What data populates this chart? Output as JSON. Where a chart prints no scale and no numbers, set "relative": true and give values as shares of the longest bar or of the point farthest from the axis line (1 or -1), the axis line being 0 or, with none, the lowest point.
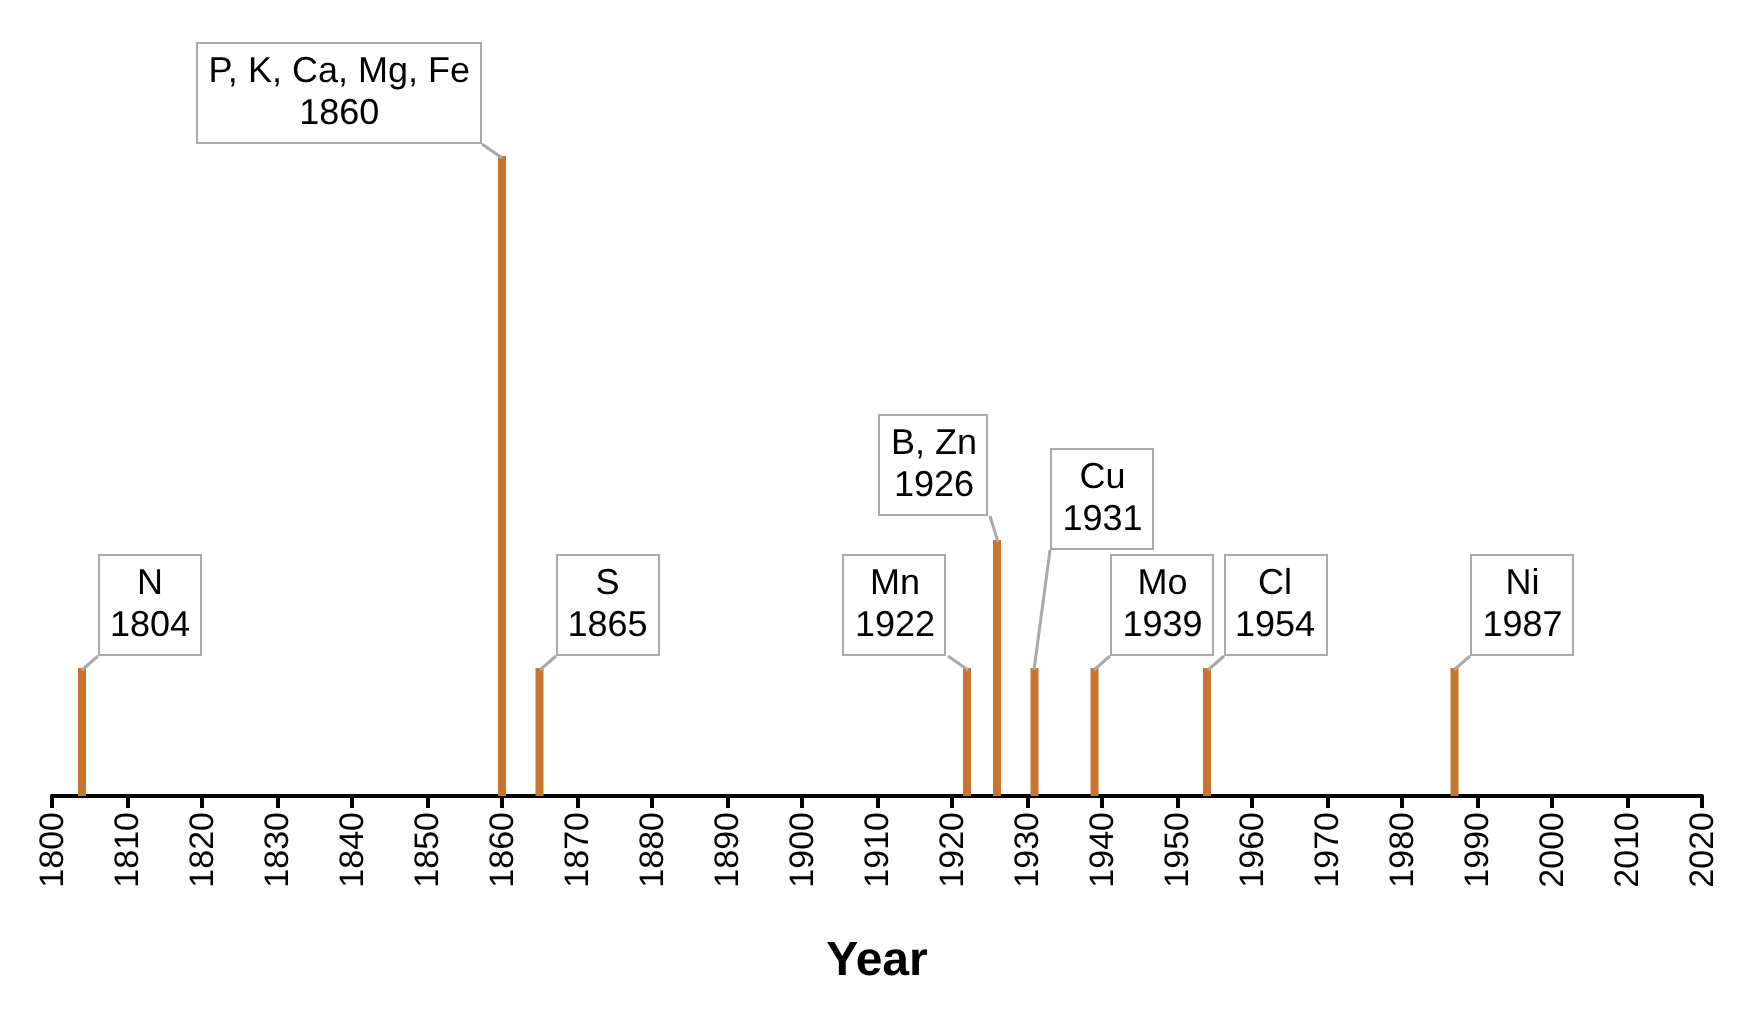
{
  "chart_data": {
    "type": "bar",
    "relative": true,
    "xlabel": "Year",
    "x": [
      1804,
      1860,
      1865,
      1922,
      1926,
      1931,
      1939,
      1954,
      1987
    ],
    "values": [
      0.2,
      1,
      0.2,
      0.2,
      0.4,
      0.2,
      0.2,
      0.2,
      0.2
    ],
    "color": "#c8762f",
    "xlim": [
      1800,
      2020
    ],
    "xticks": [
      1800,
      1810,
      1820,
      1830,
      1840,
      1850,
      1860,
      1870,
      1880,
      1890,
      1900,
      1910,
      1920,
      1930,
      1940,
      1950,
      1960,
      1970,
      1980,
      1990,
      2000,
      2010,
      2020
    ],
    "grid": false,
    "annotations": [
      {
        "text": "N\n1804",
        "x": 1804,
        "y": 0.2
      },
      {
        "text": "P, K, Ca, Mg, Fe\n1860",
        "x": 1860,
        "y": 1
      },
      {
        "text": "S\n1865",
        "x": 1865,
        "y": 0.2
      },
      {
        "text": "Mn\n1922",
        "x": 1922,
        "y": 0.2
      },
      {
        "text": "B, Zn\n1926",
        "x": 1926,
        "y": 0.4
      },
      {
        "text": "Cu\n1931",
        "x": 1931,
        "y": 0.2
      },
      {
        "text": "Mo\n1939",
        "x": 1939,
        "y": 0.2
      },
      {
        "text": "Cl\n1954",
        "x": 1954,
        "y": 0.2
      },
      {
        "text": "Ni\n1987",
        "x": 1987,
        "y": 0.2
      }
    ]
  }
}
